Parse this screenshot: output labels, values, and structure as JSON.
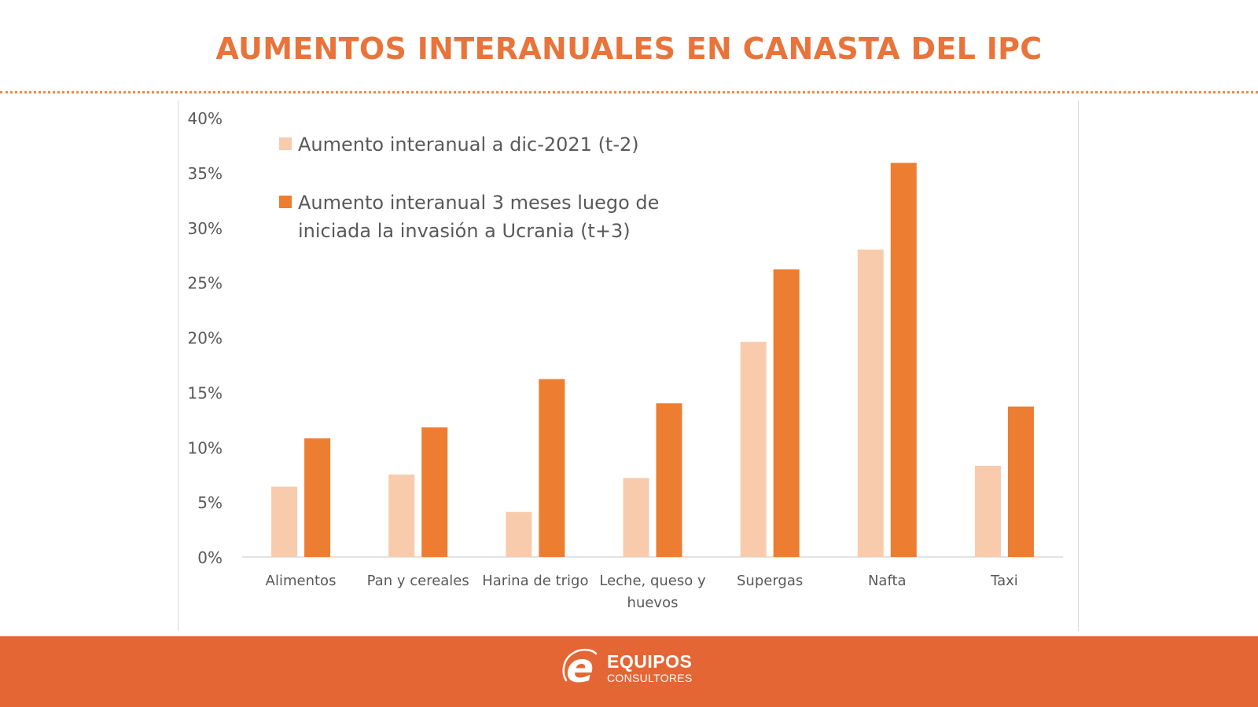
{
  "page": {
    "title": "AUMENTOS INTERANUALES EN CANASTA DEL IPC"
  },
  "footer": {
    "brand_main": "EQUIPOS",
    "brand_sub": "CONSULTORES",
    "logo_icon": "e-letter-logo-icon",
    "background_color": "#e46634"
  },
  "colors": {
    "title": "#e8743b",
    "series_light": "#f8cbad",
    "series_dark": "#ed7d31",
    "axis_text": "#595959",
    "gridline": "#d9d9d9"
  },
  "chart_data": {
    "type": "bar",
    "title": "",
    "xlabel": "",
    "ylabel": "",
    "ylim": [
      0,
      40
    ],
    "yticks": [
      "0%",
      "5%",
      "10%",
      "15%",
      "20%",
      "25%",
      "30%",
      "35%",
      "40%"
    ],
    "ytick_values": [
      0,
      5,
      10,
      15,
      20,
      25,
      30,
      35,
      40
    ],
    "grid": false,
    "legend_position": "top-left",
    "categories": [
      "Alimentos",
      "Pan y cereales",
      "Harina de trigo",
      "Leche, queso y huevos",
      "Supergas",
      "Nafta",
      "Taxi"
    ],
    "category_lines": [
      [
        "Alimentos"
      ],
      [
        "Pan y cereales"
      ],
      [
        "Harina de trigo"
      ],
      [
        "Leche, queso y",
        "huevos"
      ],
      [
        "Supergas"
      ],
      [
        "Nafta"
      ],
      [
        "Taxi"
      ]
    ],
    "series": [
      {
        "name": "Aumento interanual a dic-2021 (t-2)",
        "legend_lines": [
          "Aumento interanual a dic-2021 (t-2)"
        ],
        "color": "#f8cbad",
        "values": [
          6.4,
          7.5,
          4.1,
          7.2,
          19.6,
          28.0,
          8.3
        ]
      },
      {
        "name": "Aumento interanual 3 meses luego de iniciada la invasión a Ucrania (t+3)",
        "legend_lines": [
          "Aumento interanual 3 meses luego de",
          "iniciada la invasión a Ucrania (t+3)"
        ],
        "color": "#ed7d31",
        "values": [
          10.8,
          11.8,
          16.2,
          14.0,
          26.2,
          35.9,
          13.7
        ]
      }
    ]
  }
}
